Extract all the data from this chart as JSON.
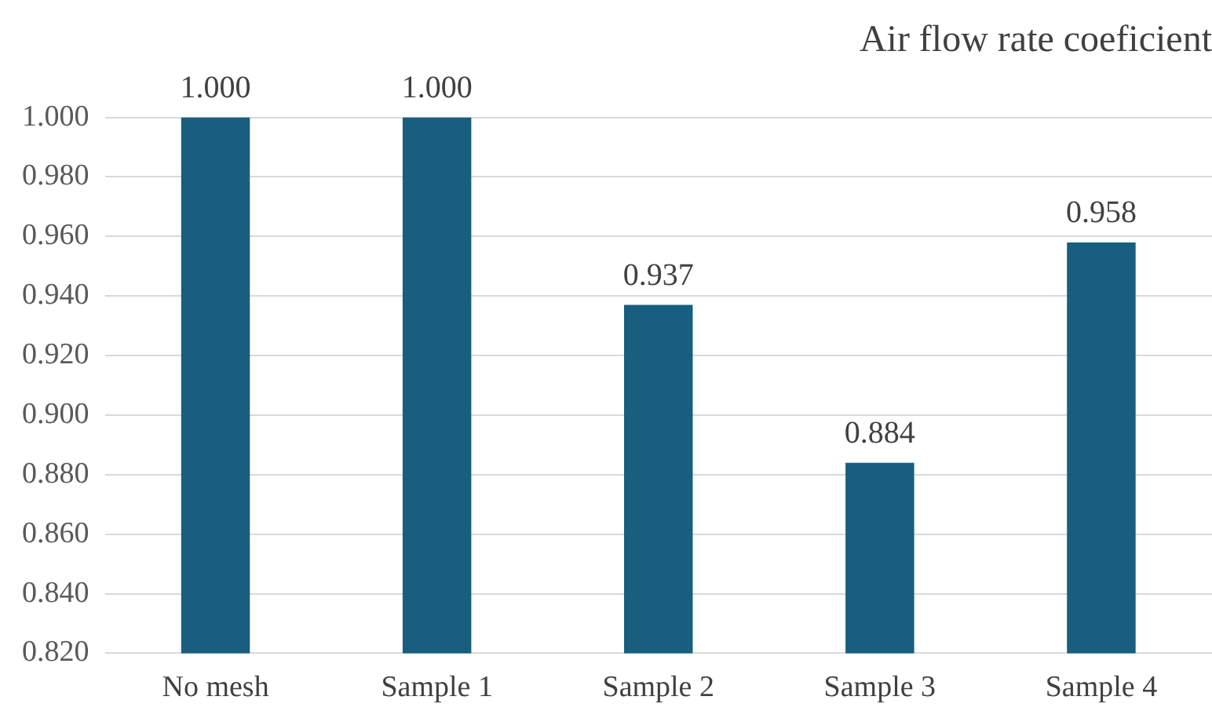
{
  "chart_data": {
    "type": "bar",
    "title": "Air flow rate coeficient",
    "categories": [
      "No mesh",
      "Sample 1",
      "Sample 2",
      "Sample 3",
      "Sample 4"
    ],
    "values": [
      1.0,
      1.0,
      0.937,
      0.884,
      0.958
    ],
    "value_labels": [
      "1.000",
      "1.000",
      "0.937",
      "0.884",
      "0.958"
    ],
    "color": "#175e7f",
    "ylim": [
      0.82,
      1.0
    ],
    "yticks": [
      {
        "value": 0.82,
        "label": "0.820"
      },
      {
        "value": 0.84,
        "label": "0.840"
      },
      {
        "value": 0.86,
        "label": "0.860"
      },
      {
        "value": 0.88,
        "label": "0.880"
      },
      {
        "value": 0.9,
        "label": "0.900"
      },
      {
        "value": 0.92,
        "label": "0.920"
      },
      {
        "value": 0.94,
        "label": "0.940"
      },
      {
        "value": 0.96,
        "label": "0.960"
      },
      {
        "value": 0.98,
        "label": "0.980"
      },
      {
        "value": 1.0,
        "label": "1.000"
      }
    ],
    "grid": "y"
  }
}
